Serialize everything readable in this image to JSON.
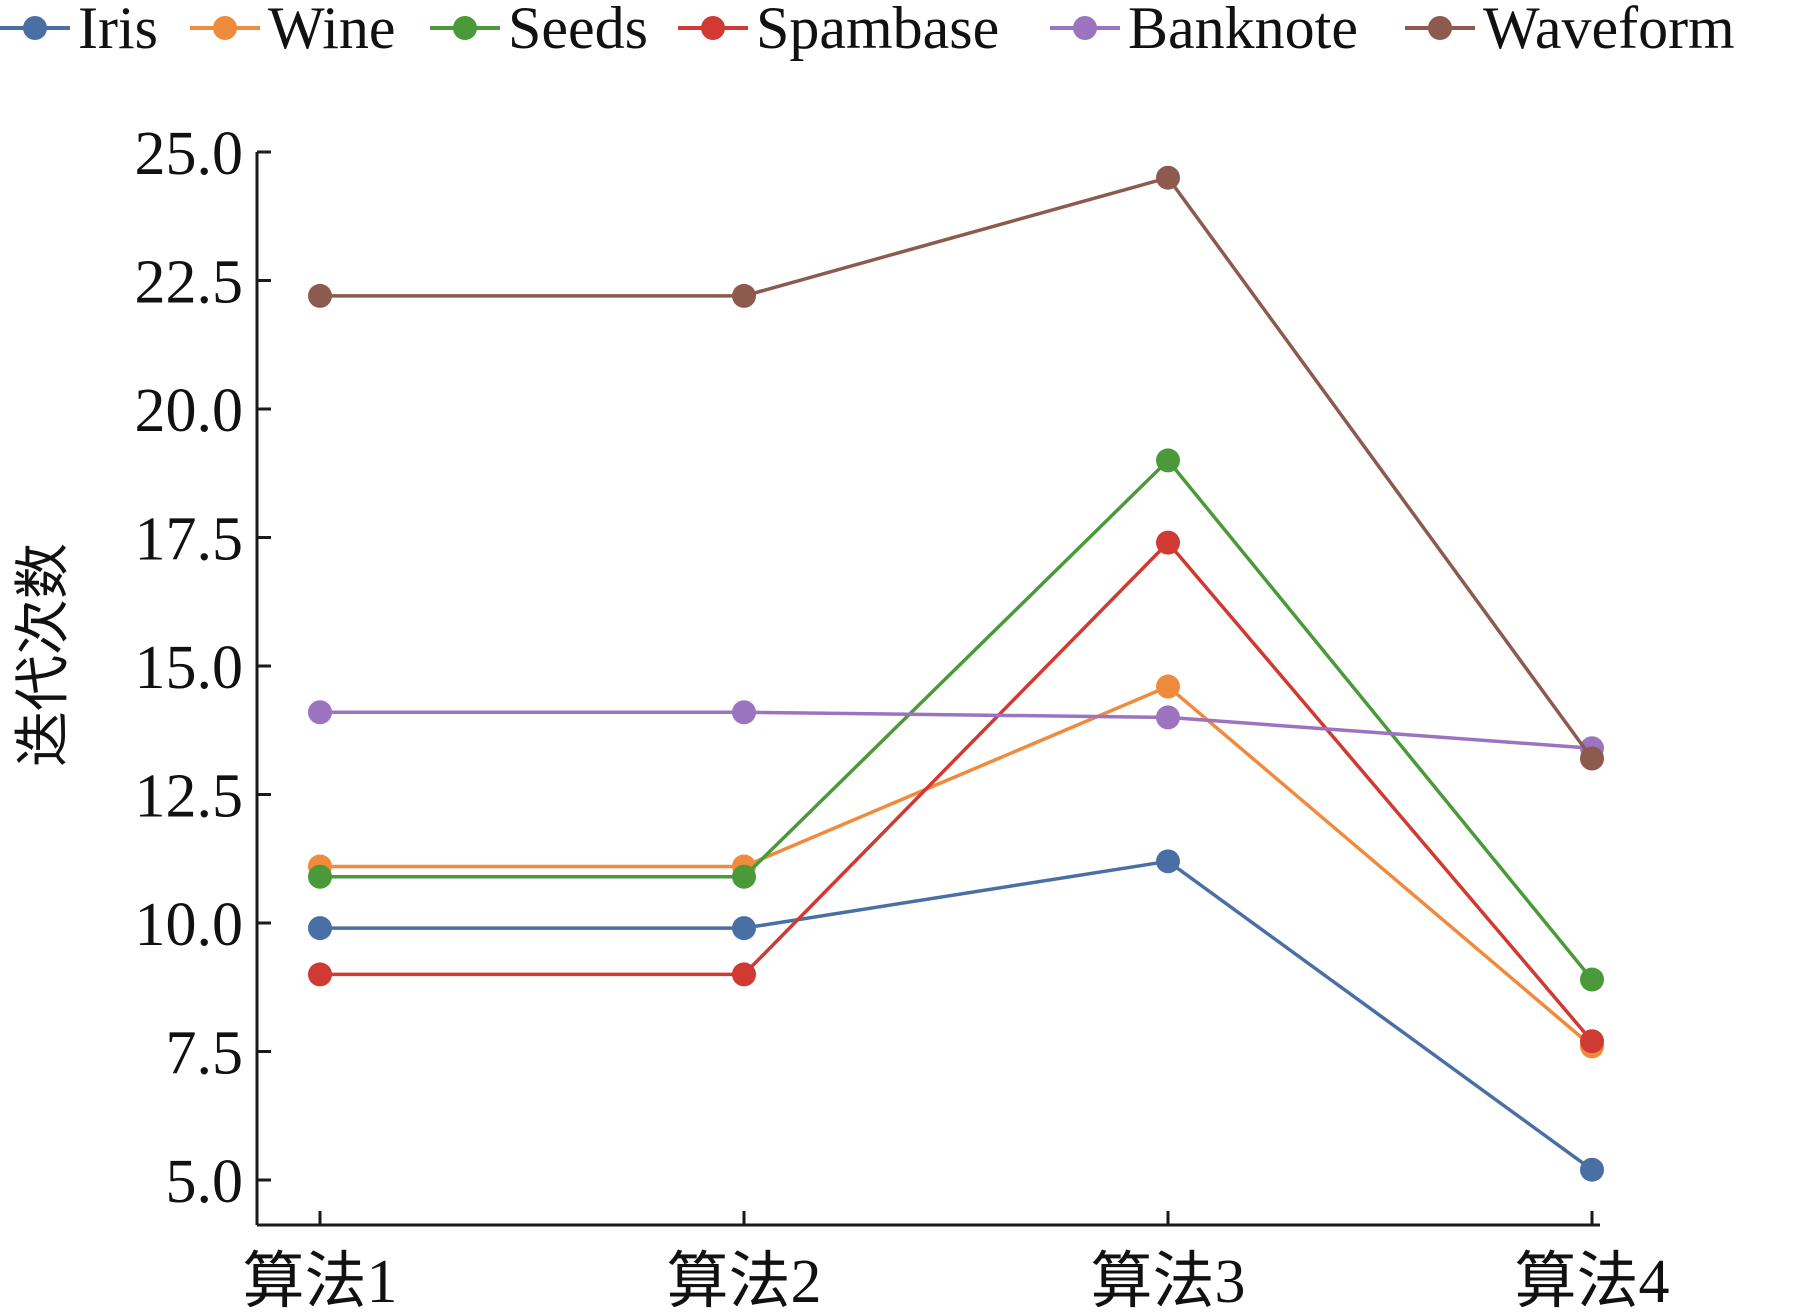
{
  "chart_data": {
    "type": "line",
    "categories": [
      "算法1",
      "算法2",
      "算法3",
      "算法4"
    ],
    "ylabel": "迭代次数",
    "xlabel": "",
    "ylim": [
      4.5,
      25
    ],
    "yticks": [
      "5.0",
      "7.5",
      "10.0",
      "12.5",
      "15.0",
      "17.5",
      "20.0",
      "22.5",
      "25.0"
    ],
    "legend_position": "top",
    "grid": false,
    "series": [
      {
        "name": "Iris",
        "color": "#4a6fa5",
        "values": [
          9.9,
          9.9,
          11.2,
          5.2
        ]
      },
      {
        "name": "Wine",
        "color": "#f08a3c",
        "values": [
          11.1,
          11.1,
          14.6,
          7.6
        ]
      },
      {
        "name": "Seeds",
        "color": "#4a9a3a",
        "values": [
          10.9,
          10.9,
          19.0,
          8.9
        ]
      },
      {
        "name": "Spambase",
        "color": "#d03a32",
        "values": [
          9.0,
          9.0,
          17.4,
          7.7
        ]
      },
      {
        "name": "Banknote",
        "color": "#9b73bf",
        "values": [
          14.1,
          14.1,
          14.0,
          13.4
        ]
      },
      {
        "name": "Waveform",
        "color": "#8c5a4e",
        "values": [
          22.2,
          22.2,
          24.5,
          13.2
        ]
      }
    ]
  }
}
